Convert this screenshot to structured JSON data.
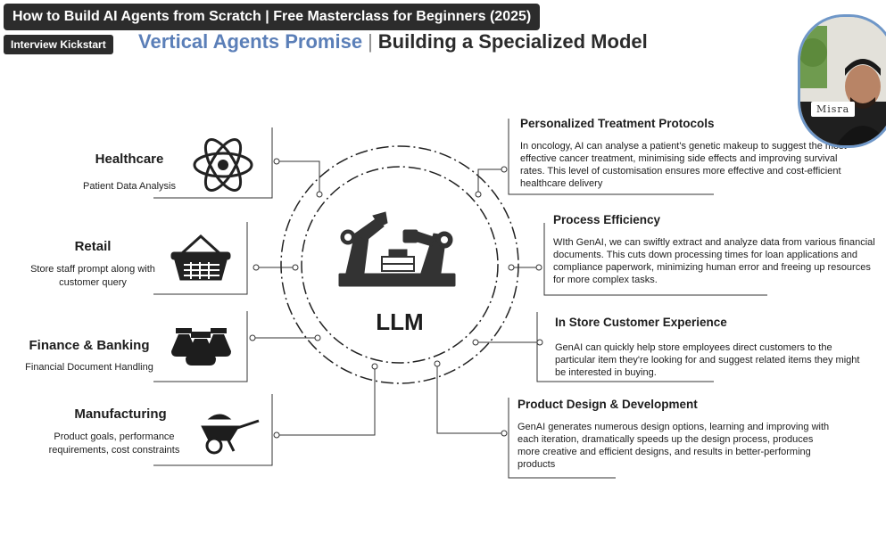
{
  "video": {
    "title": "How to Build AI Agents from Scratch  |  Free Masterclass for Beginners (2025)",
    "channel": "Interview Kickstart"
  },
  "slide": {
    "heading_part1": "Vertical Agents Promise",
    "heading_sep": "|",
    "heading_part2": "Building a Specialized Model",
    "center_label": "LLM",
    "left_items": [
      {
        "title": "Healthcare",
        "subtitle": "Patient Data Analysis",
        "icon": "atom-icon"
      },
      {
        "title": "Retail",
        "subtitle": "Store staff prompt along with customer query",
        "icon": "shopping-basket-icon"
      },
      {
        "title": "Finance & Banking",
        "subtitle": "Financial Document Handling",
        "icon": "money-bags-icon"
      },
      {
        "title": "Manufacturing",
        "subtitle": "Product goals, performance requirements, cost constraints",
        "icon": "wheelbarrow-icon"
      }
    ],
    "right_items": [
      {
        "title": "Personalized Treatment Protocols",
        "body": "In oncology, AI can analyse a patient's genetic makeup to suggest the most effective cancer treatment, minimising side effects and improving survival rates. This level of customisation ensures more effective and cost-efficient healthcare delivery"
      },
      {
        "title": "Process Efficiency",
        "body": "WIth GenAI, we can swiftly extract and analyze data from various financial documents. This cuts down processing times for loan applications and compliance paperwork, minimizing human error and freeing up resources for more complex tasks."
      },
      {
        "title": "In Store Customer Experience",
        "body": "GenAI can quickly help store employees direct customers to the particular item they're looking for and suggest related items they might be interested in buying."
      },
      {
        "title": "Product Design & Development",
        "body": "GenAI generates numerous design options, learning and improving with each iteration, dramatically speeds up the design process, produces more creative and efficient designs, and results in better-performing products"
      }
    ]
  },
  "webcam": {
    "name": "Misra"
  }
}
